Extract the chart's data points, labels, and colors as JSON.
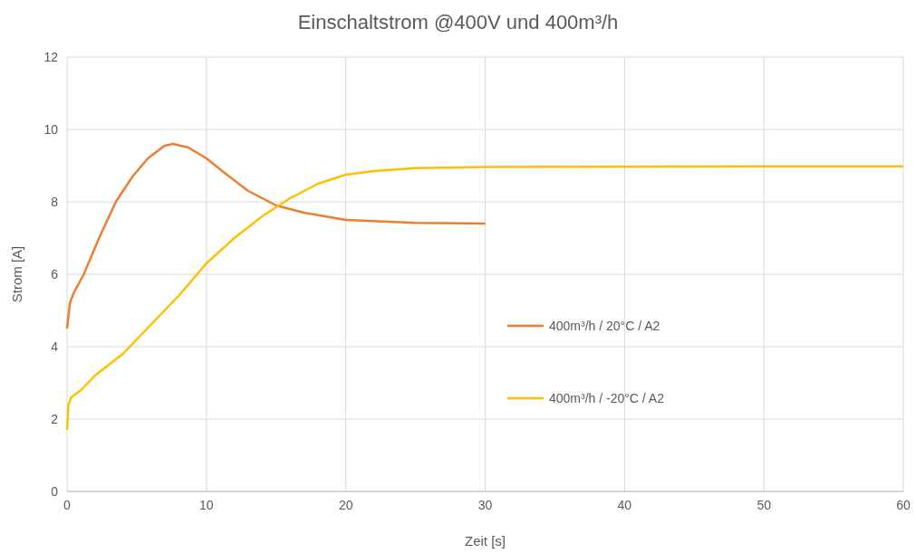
{
  "chart_data": {
    "type": "line",
    "title": "Einschaltstrom @400V und 400m³/h",
    "xlabel": "Zeit [s]",
    "ylabel": "Strom [A]",
    "xlim": [
      0,
      60
    ],
    "xticks": [
      0,
      10,
      20,
      30,
      40,
      50,
      60
    ],
    "ylim": [
      0,
      12
    ],
    "yticks": [
      0,
      2,
      4,
      6,
      8,
      10,
      12
    ],
    "grid": true,
    "legend": "right",
    "marker": "none",
    "line_style": "solid",
    "series": [
      {
        "name": "400m³/h / 20°C / A2",
        "color": "#ed7d31",
        "x": [
          0,
          0.2,
          0.5,
          1.2,
          2.3,
          3.5,
          4.7,
          5.8,
          7,
          7.6,
          8.7,
          10,
          11.3,
          13,
          15,
          17,
          20,
          25,
          30
        ],
        "values": [
          4.5,
          5.2,
          5.5,
          6,
          7,
          8,
          8.7,
          9.2,
          9.55,
          9.6,
          9.5,
          9.2,
          8.8,
          8.3,
          7.9,
          7.7,
          7.5,
          7.42,
          7.4
        ]
      },
      {
        "name": "400m³/h / -20°C / A2",
        "color": "#ffc000",
        "x": [
          0,
          0.1,
          0.3,
          1,
          2,
          4,
          6,
          8,
          10,
          12,
          14,
          16,
          18,
          20,
          22,
          25,
          30,
          40,
          50,
          60
        ],
        "values": [
          1.7,
          2.4,
          2.6,
          2.8,
          3.2,
          3.8,
          4.6,
          5.4,
          6.3,
          7,
          7.6,
          8.1,
          8.5,
          8.75,
          8.85,
          8.93,
          8.96,
          8.97,
          8.98,
          8.98
        ]
      }
    ]
  }
}
